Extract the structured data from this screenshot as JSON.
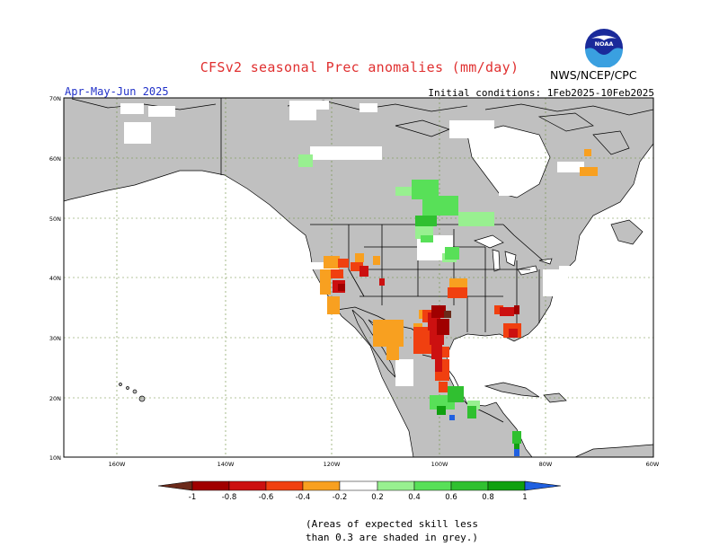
{
  "title": "CFSv2 seasonal Prec anomalies (mm/day)",
  "period": "Apr-May-Jun 2025",
  "initial_conditions": "Initial conditions: 1Feb2025-10Feb2025",
  "agency": "NWS/NCEP/CPC",
  "logo_text": "NOAA",
  "lat_labels": [
    "70N",
    "60N",
    "50N",
    "40N",
    "30N",
    "20N",
    "10N"
  ],
  "lon_labels": [
    "160W",
    "140W",
    "120W",
    "100W",
    "80W",
    "60W"
  ],
  "colorbar_labels": [
    "-1",
    "-0.8",
    "-0.6",
    "-0.4",
    "-0.2",
    "0.2",
    "0.4",
    "0.6",
    "0.8",
    "1"
  ],
  "colorbar_colors": [
    "#6b2a1a",
    "#a00000",
    "#cc1010",
    "#f04010",
    "#f8a020",
    "#ffffff",
    "#98f090",
    "#58e058",
    "#30c030",
    "#10a010",
    "#2060e0"
  ],
  "note_line1": "(Areas of expected skill less",
  "note_line2": "than 0.3 are shaded in grey.)",
  "colors": {
    "ocean": "#ffffff",
    "land_low_skill": "#c0c0c0",
    "title": "#e03030",
    "period": "#2030c8"
  },
  "chart_data": {
    "type": "heatmap",
    "title": "CFSv2 seasonal Prec anomalies (mm/day)",
    "period": "Apr-May-Jun 2025",
    "initial_conditions": "1Feb2025-10Feb2025",
    "lat_range": [
      10,
      70
    ],
    "lon_range": [
      -170,
      -60
    ],
    "color_levels": [
      -1,
      -0.8,
      -0.6,
      -0.4,
      -0.2,
      0.2,
      0.4,
      0.6,
      0.8,
      1
    ],
    "regions": [
      {
        "area": "Central/Southern Plains and Texas into NE Mexico",
        "anomaly": "-0.6 to -1"
      },
      {
        "area": "Southern Rockies / northern Mexico",
        "anomaly": "-0.4 to -0.6"
      },
      {
        "area": "California / Great Basin",
        "anomaly": "-0.2 to -1"
      },
      {
        "area": "Southeast US (Gulf coast, Georgia)",
        "anomaly": "-0.4 to -0.8"
      },
      {
        "area": "Missouri / Arkansas",
        "anomaly": "-0.2 to -0.6"
      },
      {
        "area": "Canadian Prairies / Manitoba",
        "anomaly": "0.2 to 0.6"
      },
      {
        "area": "Southern Mexico / Central America",
        "anomaly": "0.2 to 1"
      },
      {
        "area": "Northern British Columbia / Yukon",
        "anomaly": "0.2 to 0.4"
      },
      {
        "area": "Labrador",
        "anomaly": "-0.2 to -0.4"
      }
    ]
  }
}
